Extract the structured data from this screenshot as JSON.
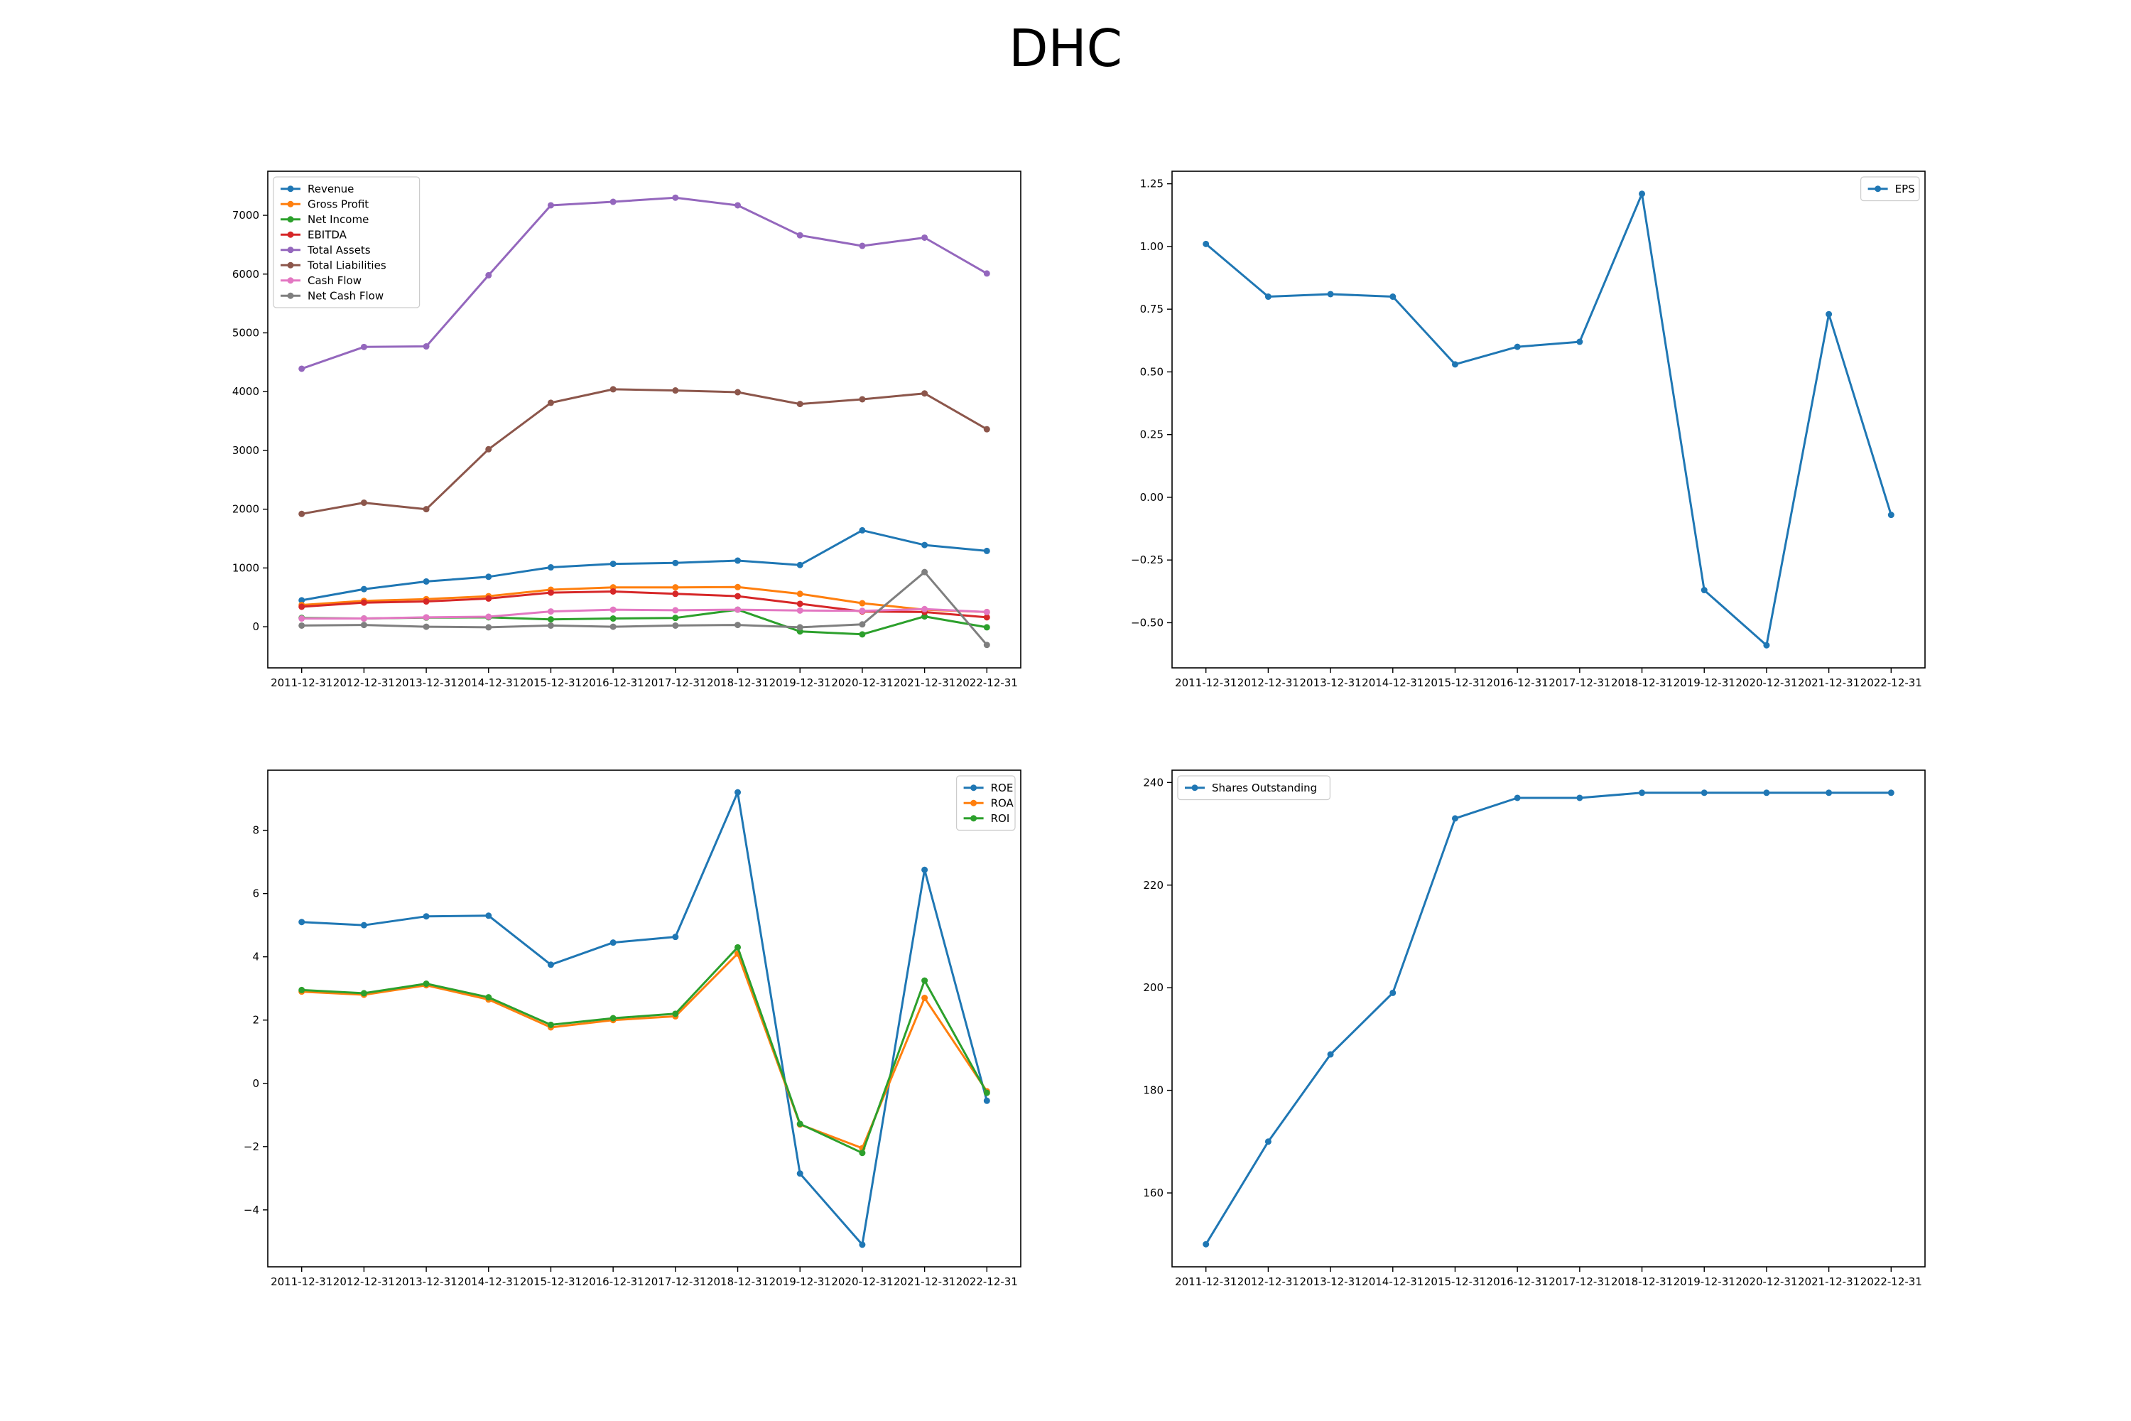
{
  "title": "DHC",
  "chart_data": [
    {
      "type": "line",
      "panel": "top-left",
      "title": "",
      "xlabel": "",
      "ylabel": "",
      "categories": [
        "2011-12-31",
        "2012-12-31",
        "2013-12-31",
        "2014-12-31",
        "2015-12-31",
        "2016-12-31",
        "2017-12-31",
        "2018-12-31",
        "2019-12-31",
        "2020-12-31",
        "2021-12-31",
        "2022-12-31"
      ],
      "ylim": [
        -700,
        7750
      ],
      "yticks": [
        0,
        1000,
        2000,
        3000,
        4000,
        5000,
        6000,
        7000
      ],
      "grid": false,
      "legend": "upper left",
      "series": [
        {
          "name": "Revenue",
          "color": "#1f77b4",
          "values": [
            450,
            640,
            770,
            850,
            1010,
            1070,
            1085,
            1125,
            1050,
            1640,
            1390,
            1290
          ]
        },
        {
          "name": "Gross Profit",
          "color": "#ff7f0e",
          "values": [
            370,
            440,
            470,
            520,
            630,
            670,
            670,
            675,
            560,
            400,
            290,
            250
          ]
        },
        {
          "name": "Net Income",
          "color": "#2ca02c",
          "values": [
            150,
            140,
            155,
            160,
            125,
            140,
            150,
            290,
            -80,
            -130,
            175,
            -10
          ]
        },
        {
          "name": "EBITDA",
          "color": "#d62728",
          "values": [
            340,
            410,
            430,
            480,
            580,
            600,
            560,
            520,
            390,
            260,
            250,
            160
          ]
        },
        {
          "name": "Total Assets",
          "color": "#9467bd",
          "values": [
            4390,
            4760,
            4770,
            5980,
            7170,
            7230,
            7300,
            7170,
            6660,
            6480,
            6620,
            6010
          ]
        },
        {
          "name": "Total Liabilities",
          "color": "#8c564b",
          "values": [
            1920,
            2110,
            2000,
            3020,
            3810,
            4040,
            4020,
            3990,
            3790,
            3870,
            3970,
            3360
          ]
        },
        {
          "name": "Cash Flow",
          "color": "#e377c2",
          "values": [
            140,
            140,
            160,
            170,
            260,
            290,
            280,
            290,
            275,
            270,
            300,
            250
          ]
        },
        {
          "name": "Net Cash Flow",
          "color": "#7f7f7f",
          "values": [
            20,
            30,
            0,
            -10,
            20,
            0,
            20,
            30,
            -10,
            40,
            930,
            -310
          ]
        }
      ]
    },
    {
      "type": "line",
      "panel": "top-right",
      "title": "",
      "xlabel": "",
      "ylabel": "",
      "categories": [
        "2011-12-31",
        "2012-12-31",
        "2013-12-31",
        "2014-12-31",
        "2015-12-31",
        "2016-12-31",
        "2017-12-31",
        "2018-12-31",
        "2019-12-31",
        "2020-12-31",
        "2021-12-31",
        "2022-12-31"
      ],
      "ylim": [
        -0.68,
        1.3
      ],
      "yticks": [
        -0.5,
        -0.25,
        0.0,
        0.25,
        0.5,
        0.75,
        1.0,
        1.25
      ],
      "ytick_labels": [
        "−0.50",
        "−0.25",
        "0.00",
        "0.25",
        "0.50",
        "0.75",
        "1.00",
        "1.25"
      ],
      "grid": false,
      "legend": "upper right",
      "series": [
        {
          "name": "EPS",
          "color": "#1f77b4",
          "values": [
            1.01,
            0.8,
            0.81,
            0.8,
            0.53,
            0.6,
            0.62,
            1.21,
            -0.37,
            -0.59,
            0.73,
            -0.07
          ]
        }
      ]
    },
    {
      "type": "line",
      "panel": "bottom-left",
      "title": "",
      "xlabel": "",
      "ylabel": "",
      "categories": [
        "2011-12-31",
        "2012-12-31",
        "2013-12-31",
        "2014-12-31",
        "2015-12-31",
        "2016-12-31",
        "2017-12-31",
        "2018-12-31",
        "2019-12-31",
        "2020-12-31",
        "2021-12-31",
        "2022-12-31"
      ],
      "ylim": [
        -5.8,
        9.9
      ],
      "yticks": [
        -4,
        -2,
        0,
        2,
        4,
        6,
        8
      ],
      "ytick_labels": [
        "−4",
        "−2",
        "0",
        "2",
        "4",
        "6",
        "8"
      ],
      "grid": false,
      "legend": "upper right",
      "series": [
        {
          "name": "ROE",
          "color": "#1f77b4",
          "values": [
            5.1,
            5.0,
            5.28,
            5.3,
            3.75,
            4.45,
            4.63,
            9.2,
            -2.85,
            -5.1,
            6.75,
            -0.55
          ]
        },
        {
          "name": "ROA",
          "color": "#ff7f0e",
          "values": [
            2.9,
            2.8,
            3.1,
            2.65,
            1.77,
            2.0,
            2.12,
            4.1,
            -1.3,
            -2.05,
            2.7,
            -0.25
          ]
        },
        {
          "name": "ROI",
          "color": "#2ca02c",
          "values": [
            2.95,
            2.85,
            3.15,
            2.72,
            1.85,
            2.06,
            2.2,
            4.3,
            -1.28,
            -2.2,
            3.25,
            -0.3
          ]
        }
      ]
    },
    {
      "type": "line",
      "panel": "bottom-right",
      "title": "",
      "xlabel": "",
      "ylabel": "",
      "categories": [
        "2011-12-31",
        "2012-12-31",
        "2013-12-31",
        "2014-12-31",
        "2015-12-31",
        "2016-12-31",
        "2017-12-31",
        "2018-12-31",
        "2019-12-31",
        "2020-12-31",
        "2021-12-31",
        "2022-12-31"
      ],
      "ylim": [
        145.6,
        242.4
      ],
      "yticks": [
        160,
        180,
        200,
        220,
        240
      ],
      "grid": false,
      "legend": "upper left",
      "series": [
        {
          "name": "Shares Outstanding",
          "color": "#1f77b4",
          "values": [
            150,
            170,
            187,
            199,
            233,
            237,
            237,
            238,
            238,
            238,
            238,
            238
          ]
        }
      ]
    }
  ]
}
